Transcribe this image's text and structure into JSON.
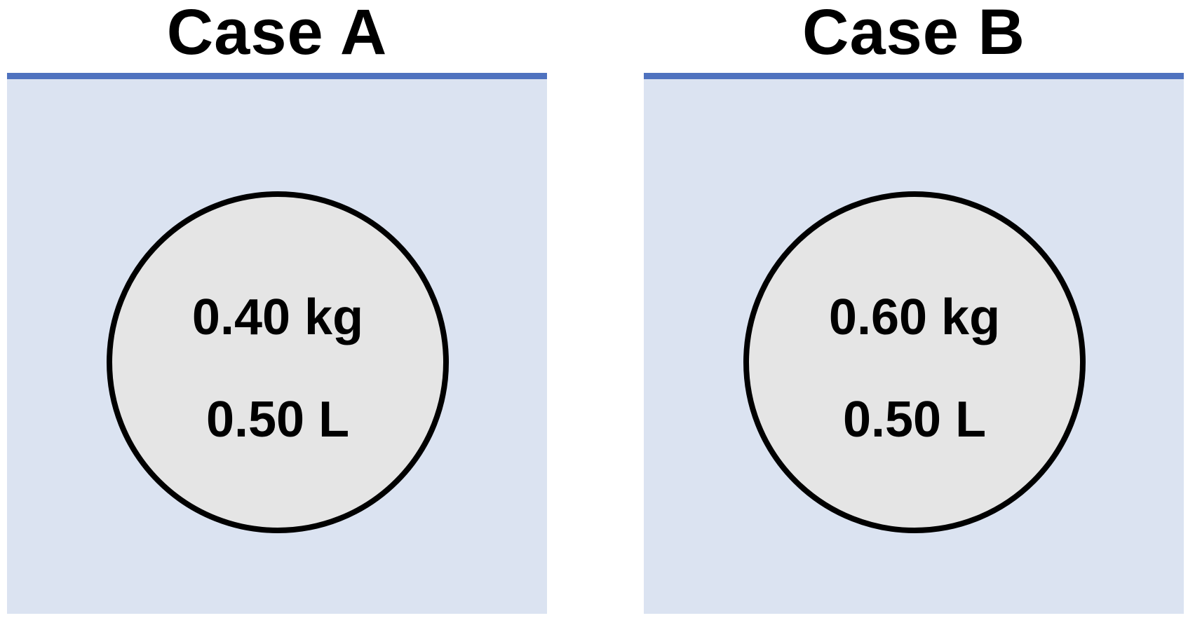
{
  "cases": [
    {
      "title": "Case A",
      "mass": "0.40 kg",
      "volume": "0.50 L"
    },
    {
      "title": "Case B",
      "mass": "0.60 kg",
      "volume": "0.50 L"
    }
  ],
  "colors": {
    "liquid_fill": "#dbe3f1",
    "liquid_surface": "#4f72bf",
    "ball_fill": "#e5e5e5",
    "ball_outline": "#000000"
  }
}
